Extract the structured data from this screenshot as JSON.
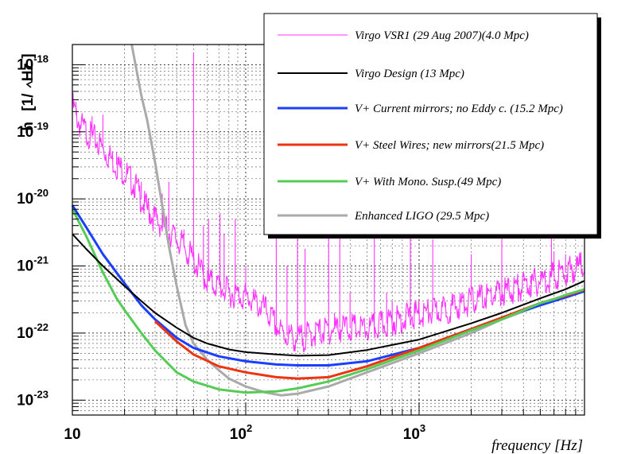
{
  "chart_data": {
    "type": "line",
    "xlabel": "frequency [Hz]",
    "ylabel_prefix": "h",
    "ylabel_unit_open": "[1/",
    "ylabel_unit_root": "Hz",
    "ylabel_unit_close": "]",
    "x_scale": "log",
    "y_scale": "log",
    "xlim": [
      10,
      9000
    ],
    "ylim": [
      6e-24,
      2e-18
    ],
    "grid": true,
    "legend_position": "top-right",
    "x_tick_labels": [
      {
        "base": "10",
        "exp": "",
        "value": 10
      },
      {
        "base": "10",
        "exp": "2",
        "value": 100
      },
      {
        "base": "10",
        "exp": "3",
        "value": 1000
      }
    ],
    "y_tick_labels": [
      {
        "base": "10",
        "exp": "-23",
        "value": 1e-23
      },
      {
        "base": "10",
        "exp": "-22",
        "value": 1e-22
      },
      {
        "base": "10",
        "exp": "-21",
        "value": 1e-21
      },
      {
        "base": "10",
        "exp": "-20",
        "value": 1e-20
      },
      {
        "base": "10",
        "exp": "-19",
        "value": 1e-19
      },
      {
        "base": "10",
        "exp": "-18",
        "value": 1e-18
      }
    ],
    "series": [
      {
        "name": "Virgo VSR1 (29 Aug 2007)(4.0 Mpc)",
        "color": "#ff33ff",
        "style": "thin",
        "points": [
          [
            10,
            2.5e-19
          ],
          [
            11,
            1.3e-19
          ],
          [
            12,
            1e-19
          ],
          [
            14,
            7e-20
          ],
          [
            16,
            4.5e-20
          ],
          [
            18,
            3.2e-20
          ],
          [
            20,
            2.5e-20
          ],
          [
            23,
            1.6e-20
          ],
          [
            26,
            8e-21
          ],
          [
            30,
            5e-21
          ],
          [
            35,
            3.5e-21
          ],
          [
            40,
            2.5e-21
          ],
          [
            45,
            1.8e-21
          ],
          [
            50,
            1.2e-21
          ],
          [
            60,
            6e-22
          ],
          [
            70,
            5e-22
          ],
          [
            80,
            4e-22
          ],
          [
            100,
            3.5e-22
          ],
          [
            130,
            2.2e-22
          ],
          [
            160,
            1e-22
          ],
          [
            200,
            8e-23
          ],
          [
            250,
            1e-22
          ],
          [
            300,
            1.1e-22
          ],
          [
            350,
            1.2e-22
          ],
          [
            400,
            1.2e-22
          ],
          [
            500,
            1.1e-22
          ],
          [
            700,
            1.5e-22
          ],
          [
            1000,
            1.9e-22
          ],
          [
            1500,
            2.3e-22
          ],
          [
            2000,
            3e-22
          ],
          [
            3000,
            4e-22
          ],
          [
            5000,
            6e-22
          ],
          [
            7000,
            8e-22
          ],
          [
            9000,
            1.1e-21
          ]
        ],
        "peaks": [
          [
            10.5,
            2.8e-19
          ],
          [
            13,
            1.7e-19
          ],
          [
            15,
            1.8e-19
          ],
          [
            18,
            5e-20
          ],
          [
            25,
            1.8e-20
          ],
          [
            33,
            1.2e-20
          ],
          [
            36,
            1.8e-20
          ],
          [
            44,
            3.5e-21
          ],
          [
            50,
            1.5e-18
          ],
          [
            57,
            4e-21
          ],
          [
            61,
            5e-21
          ],
          [
            71,
            6e-21
          ],
          [
            75,
            3e-21
          ],
          [
            87,
            5e-21
          ],
          [
            100,
            1e-21
          ],
          [
            150,
            1.2e-20
          ],
          [
            173,
            1e-21
          ],
          [
            199,
            3e-21
          ],
          [
            220,
            1.8e-21
          ],
          [
            301,
            6e-21
          ],
          [
            325,
            2e-22
          ],
          [
            349,
            7e-21
          ],
          [
            400,
            4e-22
          ],
          [
            552,
            7e-21
          ],
          [
            650,
            4e-22
          ],
          [
            700,
            3e-22
          ],
          [
            890,
            6e-21
          ],
          [
            1200,
            2.5e-21
          ],
          [
            2000,
            1.5e-21
          ],
          [
            3000,
            3e-21
          ],
          [
            4400,
            7e-22
          ],
          [
            5800,
            5e-21
          ],
          [
            6000,
            1.6e-21
          ],
          [
            7000,
            1.5e-21
          ],
          [
            8200,
            1.4e-21
          ]
        ]
      },
      {
        "name": "Virgo Design (13 Mpc)",
        "color": "#000000",
        "style": "medium",
        "points": [
          [
            10,
            3e-21
          ],
          [
            12,
            1.8e-21
          ],
          [
            15,
            1e-21
          ],
          [
            20,
            5e-22
          ],
          [
            25,
            3e-22
          ],
          [
            30,
            2e-22
          ],
          [
            40,
            1.2e-22
          ],
          [
            50,
            8.5e-23
          ],
          [
            60,
            7e-23
          ],
          [
            80,
            5.7e-23
          ],
          [
            100,
            5.2e-23
          ],
          [
            150,
            4.8e-23
          ],
          [
            200,
            4.6e-23
          ],
          [
            300,
            4.7e-23
          ],
          [
            500,
            5.6e-23
          ],
          [
            1000,
            8e-23
          ],
          [
            2000,
            1.4e-22
          ],
          [
            3000,
            2e-22
          ],
          [
            5000,
            3.3e-22
          ],
          [
            7000,
            4.5e-22
          ],
          [
            9000,
            6e-22
          ]
        ]
      },
      {
        "name": "V+ Current mirrors; no Eddy c. (15.2 Mpc)",
        "color": "#1a3fff",
        "style": "thick",
        "points": [
          [
            10,
            8e-21
          ],
          [
            12,
            3.8e-21
          ],
          [
            15,
            1.5e-21
          ],
          [
            20,
            5.5e-22
          ],
          [
            25,
            2.6e-22
          ],
          [
            30,
            1.6e-22
          ],
          [
            40,
            8.5e-23
          ],
          [
            50,
            6e-23
          ],
          [
            70,
            4.5e-23
          ],
          [
            100,
            3.8e-23
          ],
          [
            150,
            3.4e-23
          ],
          [
            200,
            3.3e-23
          ],
          [
            300,
            3.3e-23
          ],
          [
            500,
            3.8e-23
          ],
          [
            1000,
            6e-23
          ],
          [
            2000,
            1.15e-22
          ],
          [
            3000,
            1.7e-22
          ],
          [
            5000,
            2.6e-22
          ],
          [
            7000,
            3.4e-22
          ],
          [
            9000,
            4.2e-22
          ]
        ]
      },
      {
        "name": "V+ Steel Wires; new mirrors(21.5 Mpc)",
        "color": "#ee3311",
        "style": "thick",
        "points": [
          [
            30,
            1.5e-22
          ],
          [
            40,
            7.5e-23
          ],
          [
            50,
            4.8e-23
          ],
          [
            70,
            3.2e-23
          ],
          [
            100,
            2.6e-23
          ],
          [
            150,
            2.2e-23
          ],
          [
            200,
            2.1e-23
          ],
          [
            300,
            2.2e-23
          ],
          [
            500,
            3.2e-23
          ],
          [
            1000,
            6e-23
          ],
          [
            2000,
            1.15e-22
          ],
          [
            3000,
            1.7e-22
          ],
          [
            5000,
            2.8e-22
          ],
          [
            7000,
            3.6e-22
          ],
          [
            9000,
            4.4e-22
          ]
        ]
      },
      {
        "name": "V+ With Mono. Susp.(49 Mpc)",
        "color": "#55cc55",
        "style": "thick",
        "points": [
          [
            10,
            7e-21
          ],
          [
            12,
            2.8e-21
          ],
          [
            15,
            8e-22
          ],
          [
            18,
            3.3e-22
          ],
          [
            20,
            2.2e-22
          ],
          [
            25,
            1e-22
          ],
          [
            30,
            5.5e-23
          ],
          [
            40,
            2.6e-23
          ],
          [
            50,
            1.9e-23
          ],
          [
            70,
            1.45e-23
          ],
          [
            100,
            1.3e-23
          ],
          [
            150,
            1.35e-23
          ],
          [
            200,
            1.5e-23
          ],
          [
            300,
            1.9e-23
          ],
          [
            500,
            2.9e-23
          ],
          [
            1000,
            5.5e-23
          ],
          [
            2000,
            1.1e-22
          ],
          [
            3000,
            1.6e-22
          ],
          [
            5000,
            2.8e-22
          ],
          [
            6000,
            3.2e-22
          ],
          [
            7000,
            3.7e-22
          ],
          [
            9000,
            4.5e-22
          ]
        ]
      },
      {
        "name": "Enhanced LIGO (29.5 Mpc)",
        "color": "#aaaaaa",
        "style": "thick",
        "points": [
          [
            22,
            2e-18
          ],
          [
            25,
            3.5e-19
          ],
          [
            27,
            1.5e-19
          ],
          [
            30,
            3.5e-20
          ],
          [
            33,
            8e-21
          ],
          [
            36,
            2e-21
          ],
          [
            40,
            5e-22
          ],
          [
            45,
            1.3e-22
          ],
          [
            50,
            7e-23
          ],
          [
            60,
            4e-23
          ],
          [
            70,
            2.8e-23
          ],
          [
            80,
            2.1e-23
          ],
          [
            100,
            1.6e-23
          ],
          [
            130,
            1.3e-23
          ],
          [
            160,
            1.18e-23
          ],
          [
            200,
            1.25e-23
          ],
          [
            300,
            1.6e-23
          ],
          [
            500,
            2.6e-23
          ],
          [
            1000,
            5e-23
          ],
          [
            2000,
            1e-22
          ],
          [
            3000,
            1.6e-22
          ],
          [
            5000,
            2.6e-22
          ]
        ]
      }
    ]
  }
}
